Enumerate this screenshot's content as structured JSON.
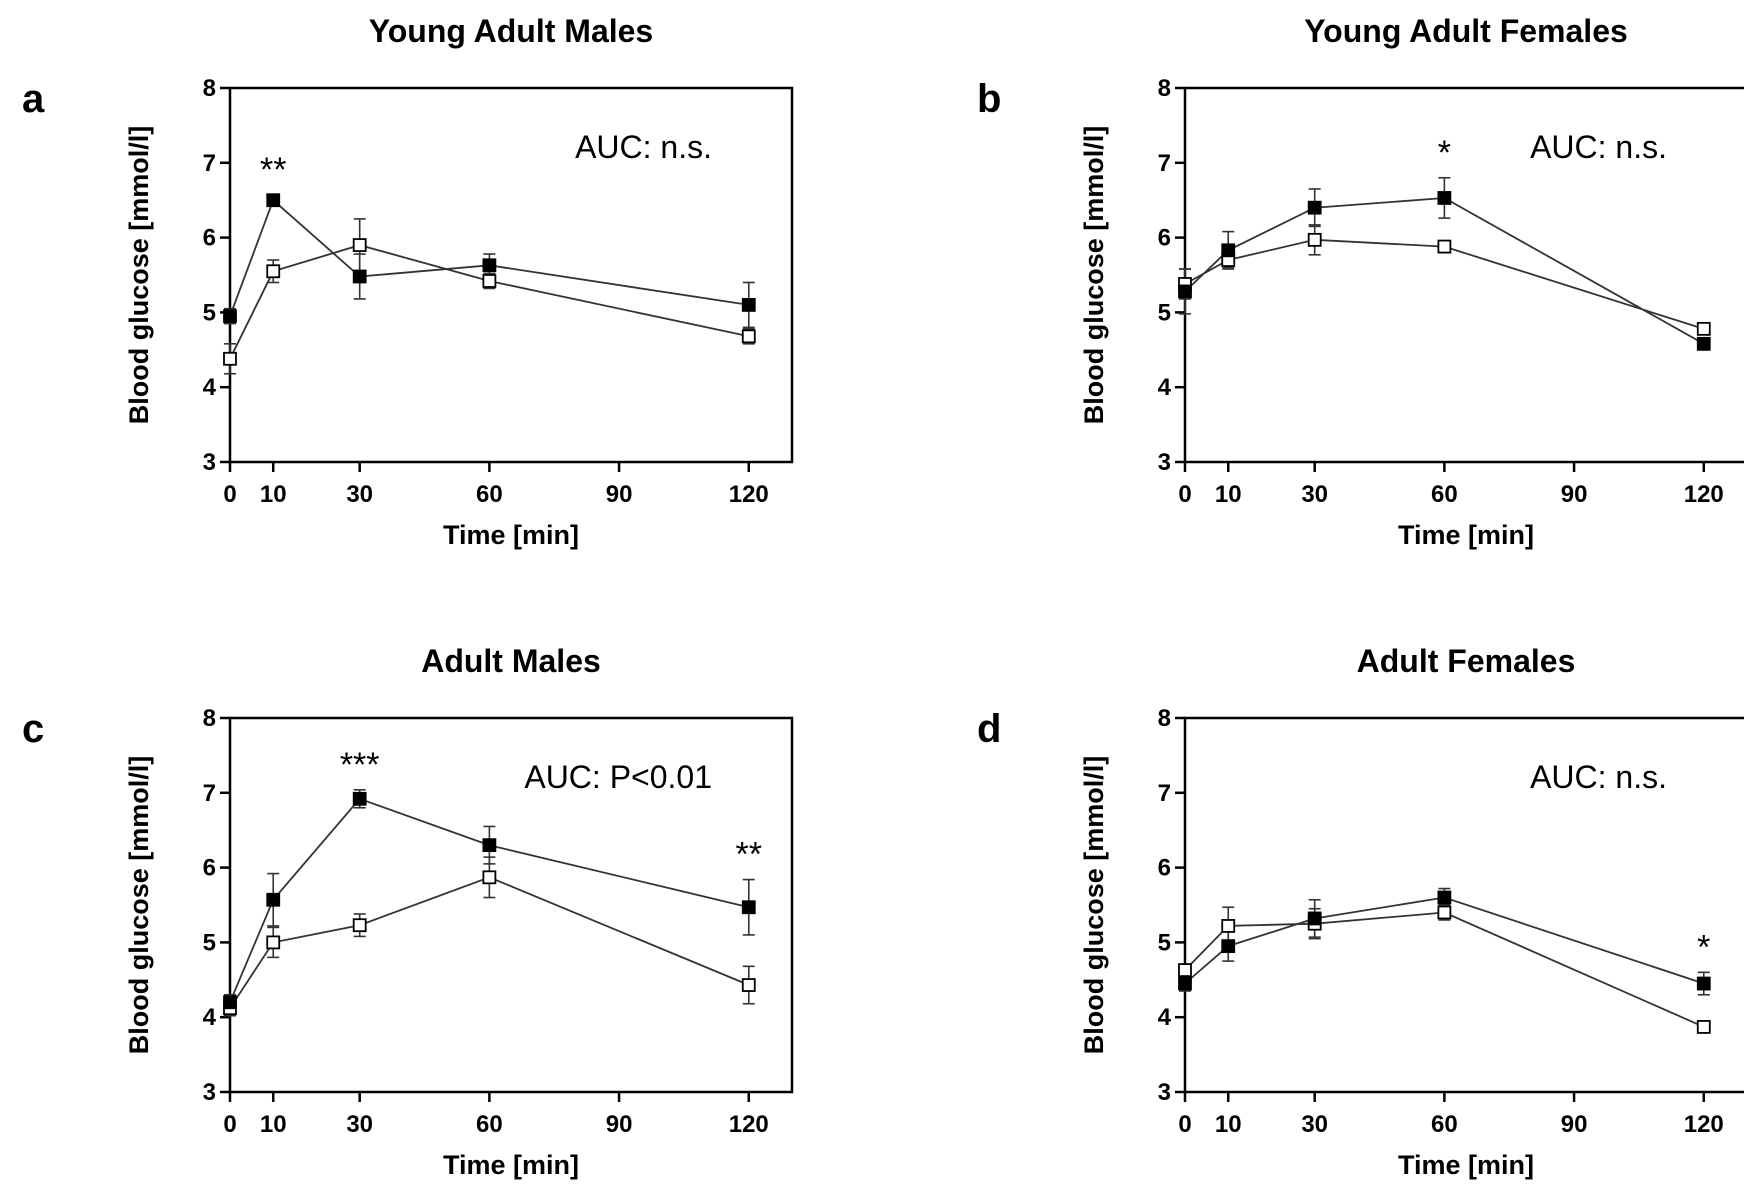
{
  "chart_data": [
    {
      "type": "line",
      "panel": "a",
      "title": "Young Adult  Males",
      "xlabel": "Time [min]",
      "ylabel": "Blood glucose [mmol/l]",
      "x": [
        0,
        10,
        30,
        60,
        120
      ],
      "x_ticks": [
        0,
        10,
        30,
        60,
        90,
        120
      ],
      "y_ticks": [
        3,
        4,
        5,
        6,
        7,
        8
      ],
      "xlim": [
        0,
        130
      ],
      "ylim": [
        3,
        8
      ],
      "series": [
        {
          "marker": "filled-square",
          "values": [
            4.95,
            6.5,
            5.48,
            5.63,
            5.1
          ],
          "errors": [
            0.1,
            0.07,
            0.3,
            0.15,
            0.3
          ]
        },
        {
          "marker": "open-square",
          "values": [
            4.38,
            5.55,
            5.9,
            5.42,
            4.68
          ],
          "errors": [
            0.2,
            0.15,
            0.35,
            0.1,
            0.1
          ]
        }
      ],
      "annotation": "AUC: n.s.",
      "significance": [
        {
          "x": 10,
          "label": "**"
        }
      ]
    },
    {
      "type": "line",
      "panel": "b",
      "title": "Young Adult Females",
      "xlabel": "Time [min]",
      "ylabel": "Blood glucose [mmol/l]",
      "x": [
        0,
        10,
        30,
        60,
        120
      ],
      "x_ticks": [
        0,
        10,
        30,
        60,
        90,
        120
      ],
      "y_ticks": [
        3,
        4,
        5,
        6,
        7,
        8
      ],
      "xlim": [
        0,
        130
      ],
      "ylim": [
        3,
        8
      ],
      "series": [
        {
          "marker": "filled-square",
          "values": [
            5.28,
            5.83,
            6.4,
            6.53,
            4.58
          ],
          "errors": [
            0.3,
            0.25,
            0.25,
            0.27,
            0.08
          ]
        },
        {
          "marker": "open-square",
          "values": [
            5.38,
            5.7,
            5.97,
            5.88,
            4.78
          ],
          "errors": [
            0.2,
            0.1,
            0.2,
            0.05,
            0.05
          ]
        }
      ],
      "annotation": "AUC: n.s.",
      "significance": [
        {
          "x": 60,
          "label": "*"
        }
      ]
    },
    {
      "type": "line",
      "panel": "c",
      "title": "Adult Males",
      "xlabel": "Time [min]",
      "ylabel": "Blood glucose [mmol/l]",
      "x": [
        0,
        10,
        30,
        60,
        120
      ],
      "x_ticks": [
        0,
        10,
        30,
        60,
        90,
        120
      ],
      "y_ticks": [
        3,
        4,
        5,
        6,
        7,
        8
      ],
      "xlim": [
        0,
        130
      ],
      "ylim": [
        3,
        8
      ],
      "series": [
        {
          "marker": "filled-square",
          "values": [
            4.2,
            5.57,
            6.92,
            6.3,
            5.47
          ],
          "errors": [
            0.1,
            0.35,
            0.12,
            0.25,
            0.37
          ]
        },
        {
          "marker": "open-square",
          "values": [
            4.12,
            5.0,
            5.23,
            5.87,
            4.43
          ],
          "errors": [
            0.1,
            0.2,
            0.15,
            0.27,
            0.25
          ]
        }
      ],
      "annotation": "AUC: P<0.01",
      "significance": [
        {
          "x": 30,
          "label": "***"
        },
        {
          "x": 120,
          "label": "**"
        }
      ]
    },
    {
      "type": "line",
      "panel": "d",
      "title": "Adult Females",
      "xlabel": "Time [min]",
      "ylabel": "Blood glucose [mmol/l]",
      "x": [
        0,
        10,
        30,
        60,
        120
      ],
      "x_ticks": [
        0,
        10,
        30,
        60,
        90,
        120
      ],
      "y_ticks": [
        3,
        4,
        5,
        6,
        7,
        8
      ],
      "xlim": [
        0,
        130
      ],
      "ylim": [
        3,
        8
      ],
      "series": [
        {
          "marker": "filled-square",
          "values": [
            4.45,
            4.95,
            5.32,
            5.6,
            4.45
          ],
          "errors": [
            0.1,
            0.2,
            0.25,
            0.12,
            0.15
          ]
        },
        {
          "marker": "open-square",
          "values": [
            4.63,
            5.22,
            5.25,
            5.4,
            3.87
          ],
          "errors": [
            0.07,
            0.25,
            0.2,
            0.1,
            0.07
          ]
        }
      ],
      "annotation": "AUC: n.s.",
      "significance": [
        {
          "x": 120,
          "label": "*"
        }
      ]
    }
  ]
}
